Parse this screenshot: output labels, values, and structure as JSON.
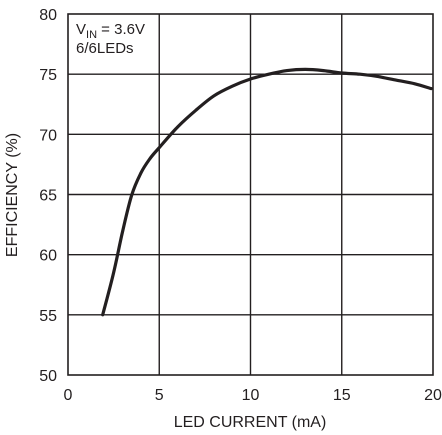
{
  "chart_data": {
    "type": "line",
    "xlabel": "LED CURRENT (mA)",
    "ylabel": "EFFICIENCY (%)",
    "xlim": [
      0,
      20
    ],
    "ylim": [
      50,
      80
    ],
    "x_ticks": [
      0,
      5,
      10,
      15,
      20
    ],
    "y_ticks": [
      50,
      55,
      60,
      65,
      70,
      75,
      80
    ],
    "x_tick_labels": [
      "0",
      "5",
      "10",
      "15",
      "20"
    ],
    "y_tick_labels": [
      "50",
      "55",
      "60",
      "65",
      "70",
      "75",
      "80"
    ],
    "grid": true,
    "annotation": {
      "line1_prefix": "V",
      "line1_sub": "IN",
      "line1_suffix": " = 3.6V",
      "line2": "6/6LEDs"
    },
    "series": [
      {
        "x": [
          1.9,
          2.5,
          3.0,
          3.5,
          4.0,
          4.5,
          5.0,
          6.0,
          7.0,
          8.0,
          9.0,
          10.0,
          11.0,
          12.0,
          13.0,
          14.0,
          15.0,
          16.0,
          17.0,
          18.0,
          19.0,
          19.9
        ],
        "y": [
          55.0,
          58.5,
          62.0,
          65.0,
          66.8,
          68.0,
          68.9,
          70.6,
          72.0,
          73.2,
          74.0,
          74.6,
          75.0,
          75.3,
          75.4,
          75.3,
          75.1,
          75.0,
          74.8,
          74.5,
          74.2,
          73.8
        ]
      }
    ]
  }
}
